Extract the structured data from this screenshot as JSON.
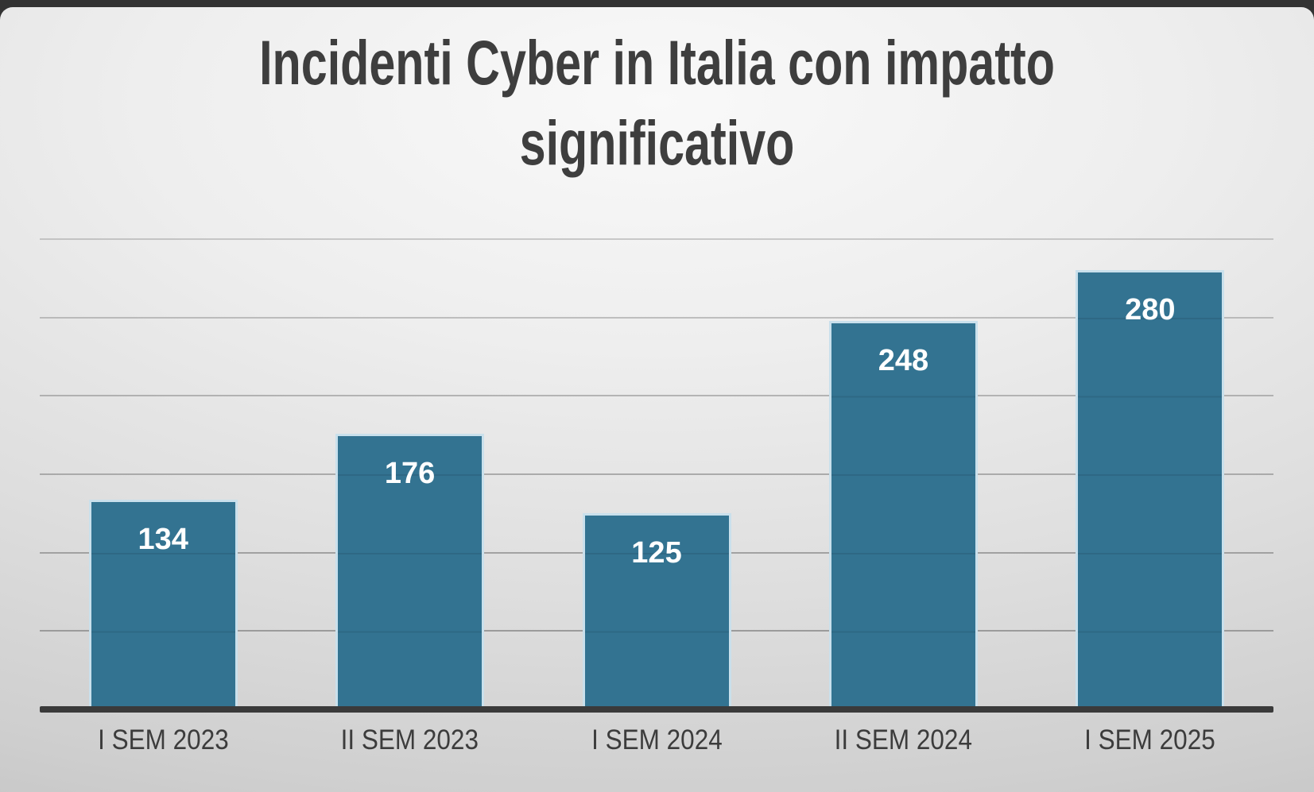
{
  "title_lines": [
    "Incidenti Cyber in Italia con impatto",
    "significativo"
  ],
  "chart_data": {
    "type": "bar",
    "title": "Incidenti Cyber in Italia con impatto significativo",
    "categories": [
      "I SEM 2023",
      "II SEM 2023",
      "I SEM 2024",
      "II SEM 2024",
      "I SEM 2025"
    ],
    "values": [
      134,
      176,
      125,
      248,
      280
    ],
    "xlabel": "",
    "ylabel": "",
    "ylim": [
      0,
      300
    ],
    "ytick_interval": 50,
    "yaxis_tick_labels_visible": false,
    "grid": "horizontal",
    "legend": "none",
    "data_labels": {
      "position": "inside-top",
      "color": "#FFFFFF",
      "bold": true
    },
    "colors": {
      "bar_fill": "#337391",
      "bar_border": "#C9E0EC",
      "gridline": "#949494",
      "axis_line": "#3A3A3A",
      "title_text": "#3E3E3E",
      "category_text": "#3C3C3C",
      "top_strip": "#333333",
      "background": "#DADADA"
    }
  }
}
